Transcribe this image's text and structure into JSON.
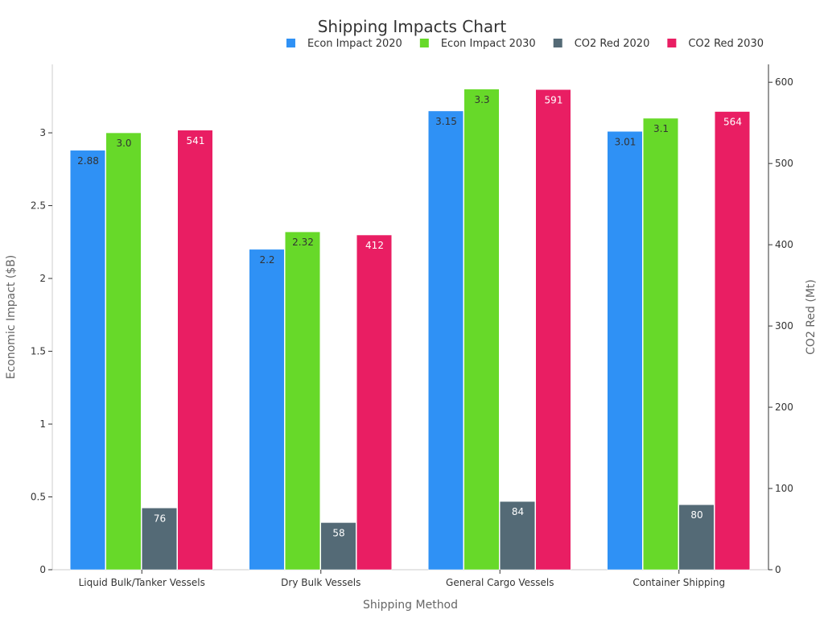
{
  "chart_data": {
    "type": "bar",
    "title": "Shipping Impacts Chart",
    "xlabel": "Shipping Method",
    "ylabel_left": "Economic Impact ($B)",
    "ylabel_right": "CO2 Red (Mt)",
    "categories": [
      "Liquid Bulk/Tanker Vessels",
      "Dry Bulk Vessels",
      "General Cargo Vessels",
      "Container Shipping"
    ],
    "series": [
      {
        "name": "Econ Impact 2020",
        "axis": "left",
        "color": "#2f91f5",
        "values": [
          2.88,
          2.2,
          3.15,
          3.01
        ],
        "labels": [
          "2.88",
          "2.2",
          "3.15",
          "3.01"
        ],
        "label_color": "#333333"
      },
      {
        "name": "Econ Impact 2030",
        "axis": "left",
        "color": "#67d929",
        "values": [
          3.0,
          2.32,
          3.3,
          3.1
        ],
        "labels": [
          "3.0",
          "2.32",
          "3.3",
          "3.1"
        ],
        "label_color": "#333333"
      },
      {
        "name": "CO2 Red 2020",
        "axis": "right",
        "color": "#546a76",
        "values": [
          76,
          58,
          84,
          80
        ],
        "labels": [
          "76",
          "58",
          "84",
          "80"
        ],
        "label_color": "#ffffff"
      },
      {
        "name": "CO2 Red 2030",
        "axis": "right",
        "color": "#e91e63",
        "values": [
          541,
          412,
          591,
          564
        ],
        "labels": [
          "541",
          "412",
          "591",
          "564"
        ],
        "label_color": "#ffffff"
      }
    ],
    "ylim_left": [
      0,
      3.47
    ],
    "yticks_left": [
      0,
      0.5,
      1,
      1.5,
      2,
      2.5,
      3
    ],
    "ytick_labels_left": [
      "0",
      "0.5",
      "1",
      "1.5",
      "2",
      "2.5",
      "3"
    ],
    "ylim_right": [
      0,
      622
    ],
    "yticks_right": [
      0,
      100,
      200,
      300,
      400,
      500,
      600
    ],
    "ytick_labels_right": [
      "0",
      "100",
      "200",
      "300",
      "400",
      "500",
      "600"
    ],
    "grid": false,
    "legend_position": "top-right"
  }
}
